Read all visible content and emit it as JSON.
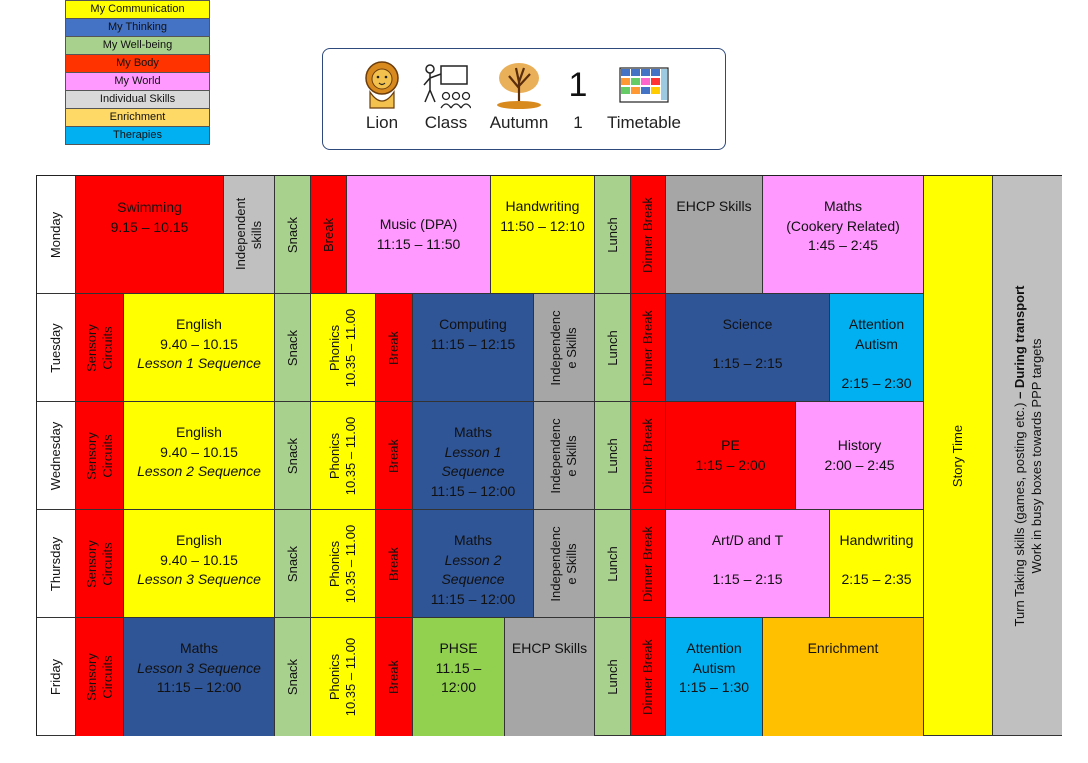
{
  "legend": [
    {
      "label": "My Communication",
      "color": "#ffff00"
    },
    {
      "label": "My Thinking",
      "color": "#4472c4"
    },
    {
      "label": "My Well-being",
      "color": "#a9d18e"
    },
    {
      "label": "My Body",
      "color": "#ff3300"
    },
    {
      "label": "My World",
      "color": "#ff99ff"
    },
    {
      "label": "Individual Skills",
      "color": "#d9d9d9"
    },
    {
      "label": "Enrichment",
      "color": "#ffd966"
    },
    {
      "label": "Therapies",
      "color": "#00b0f0"
    }
  ],
  "header": {
    "symbols": [
      {
        "icon": "lion-icon",
        "label": "Lion"
      },
      {
        "icon": "class-teacher-icon",
        "label": "Class"
      },
      {
        "icon": "autumn-tree-icon",
        "label": "Autumn"
      },
      {
        "icon": "number-one-icon",
        "label": "1",
        "glyph": "1"
      },
      {
        "icon": "timetable-grid-icon",
        "label": "Timetable"
      }
    ]
  },
  "days": [
    "Monday",
    "Tuesday",
    "Wednesday",
    "Thursday",
    "Friday"
  ],
  "common": {
    "snack": "Snack",
    "break": "Break",
    "lunch": "Lunch",
    "dinner_break": "Dinner Break",
    "sensory": "Sensory Circuits",
    "phonics": "Phonics",
    "phonics_time": "10.35 – 11.00",
    "independence": "Independenc e Skills",
    "story_time": "Story Time",
    "transport_1": "Turn Taking skills (games, posting etc.) ",
    "transport_bold": "– During transport",
    "transport_2": "Work in busy boxes towards PPP targets"
  },
  "monday": {
    "swimming": [
      "Swimming",
      "9.15 – 10.15"
    ],
    "independent": "Independent skills",
    "music": [
      "Music (DPA)",
      "11:15 – 11:50"
    ],
    "handwriting": [
      "Handwriting",
      "11:50 – 12:10"
    ],
    "ehcp": "EHCP Skills",
    "maths": [
      "Maths",
      "(Cookery Related)",
      "1:45 – 2:45"
    ]
  },
  "tuesday": {
    "english": [
      "English",
      "9.40 – 10.15",
      "Lesson 1 Sequence"
    ],
    "computing": [
      "Computing",
      "11:15 – 12:15"
    ],
    "science": [
      "Science",
      "1:15 – 2:15"
    ],
    "attention": [
      "Attention",
      "Autism",
      "2:15 – 2:30"
    ]
  },
  "wednesday": {
    "english": [
      "English",
      "9.40 – 10.15",
      "Lesson 2 Sequence"
    ],
    "maths": [
      "Maths",
      "Lesson 1",
      "Sequence",
      "11:15 – 12:00"
    ],
    "pe": [
      "PE",
      "1:15 – 2:00"
    ],
    "history": [
      "History",
      "2:00 – 2:45"
    ]
  },
  "thursday": {
    "english": [
      "English",
      "9.40 – 10.15",
      "Lesson 3 Sequence"
    ],
    "maths": [
      "Maths",
      "Lesson 2",
      "Sequence",
      "11:15 – 12:00"
    ],
    "art": [
      "Art/D and T",
      "1:15 – 2:15"
    ],
    "handwriting": [
      "Handwriting",
      "2:15 – 2:35"
    ]
  },
  "friday": {
    "maths": [
      "Maths",
      "Lesson 3 Sequence",
      "11:15 – 12:00"
    ],
    "phse": [
      "PHSE",
      "11.15 –",
      "12:00"
    ],
    "ehcp": "EHCP Skills",
    "attention": [
      "Attention",
      "Autism",
      "1:15 – 1:30"
    ],
    "enrichment": "Enrichment"
  }
}
